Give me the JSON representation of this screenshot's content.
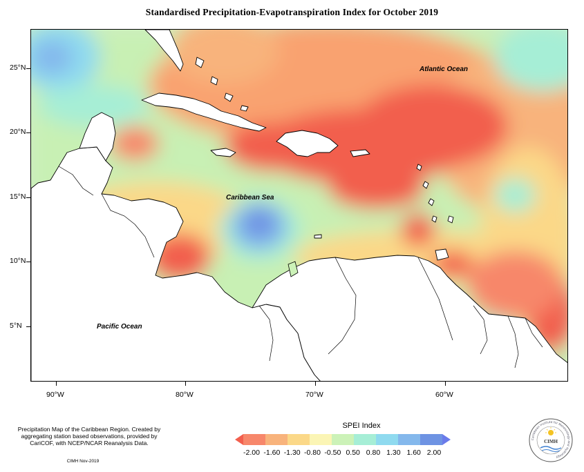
{
  "title": "Standardised Precipitation-Evapotranspiration Index for October 2019",
  "map": {
    "labels": {
      "atlantic": "Atlantic Ocean",
      "caribbean": "Caribbean Sea",
      "pacific": "Pacific Ocean"
    },
    "latitude_ticks": [
      "25°N",
      "20°N",
      "15°N",
      "10°N",
      "5°N"
    ],
    "longitude_ticks": [
      "90°W",
      "80°W",
      "70°W",
      "60°W"
    ]
  },
  "legend": {
    "title": "SPEI Index",
    "values": [
      "-2.00",
      "-1.60",
      "-1.30",
      "-0.80",
      "-0.50",
      "0.50",
      "0.80",
      "1.30",
      "1.60",
      "2.00"
    ],
    "colors": [
      "#f25f4e",
      "#f7876b",
      "#f8b37c",
      "#fbd888",
      "#fbf5b5",
      "#ccf2b8",
      "#a6eed6",
      "#8fdaef",
      "#84b8ec",
      "#6e93e3",
      "#6a7bea"
    ]
  },
  "footer": {
    "description": "Precipitation Map of the Caribbean Region. Created by aggregating station based observations, provided by CariCOF, with NCEP/NCAR Reanalysis Data.",
    "credit": "CIMH Nov-2019"
  },
  "logo": {
    "text": "CIMH",
    "ring_text": "Caribbean Institute for Meteorology and Hydrology"
  }
}
